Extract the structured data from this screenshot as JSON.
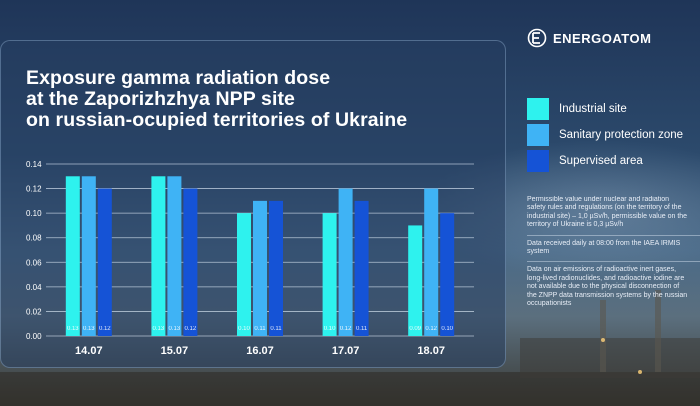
{
  "brand": {
    "name": "ENERGOATOM"
  },
  "title_lines": [
    "Exposure gamma radiation dose",
    "at the Zaporizhzhya NPP site",
    "on russian-ocupied territories of Ukraine"
  ],
  "legend": [
    {
      "label": "Industrial site",
      "color": "#2ef2ee"
    },
    {
      "label": "Sanitary protection zone",
      "color": "#3fb3f5"
    },
    {
      "label": "Supervised area",
      "color": "#1553d6"
    }
  ],
  "notes": [
    [
      "Permissible value under nuclear and radiation",
      "safety rules and regulations (on the territory of the",
      "industrial site) – 1,0 µSv/h, permissible value on the",
      "territory of Ukraine is 0,3 µSv/h"
    ],
    [
      "Data received daily at 08:00 from the IAEA IRMIS",
      "system"
    ],
    [
      "Data on air emissions of radioactive inert gases,",
      "long-lived radionuclides, and radioactive iodine are",
      "not available due to the physical disconnection of",
      "the ZNPP data transmission systems by the russian",
      "occupationists"
    ]
  ],
  "chart_data": {
    "type": "bar",
    "categories": [
      "14.07",
      "15.07",
      "16.07",
      "17.07",
      "18.07"
    ],
    "series": [
      {
        "name": "Industrial site",
        "values": [
          0.13,
          0.13,
          0.1,
          0.1,
          0.09
        ],
        "color": "#2ef2ee"
      },
      {
        "name": "Sanitary protection zone",
        "values": [
          0.13,
          0.13,
          0.11,
          0.12,
          0.12
        ],
        "color": "#3fb3f5"
      },
      {
        "name": "Supervised area",
        "values": [
          0.12,
          0.12,
          0.11,
          0.11,
          0.1
        ],
        "color": "#1553d6"
      }
    ],
    "data_labels": [
      [
        "0.13",
        "0.13",
        "0.10",
        "0.10",
        "0.09"
      ],
      [
        "0.13",
        "0.13",
        "0.11",
        "0.12",
        "0.12"
      ],
      [
        "0.12",
        "0.12",
        "0.11",
        "0.11",
        "0.10"
      ]
    ],
    "yticks": [
      "0.00",
      "0.02",
      "0.04",
      "0.06",
      "0.08",
      "0.10",
      "0.12",
      "0.14"
    ],
    "ylim": [
      0,
      0.14
    ],
    "grid": true,
    "legend_position": "right"
  }
}
